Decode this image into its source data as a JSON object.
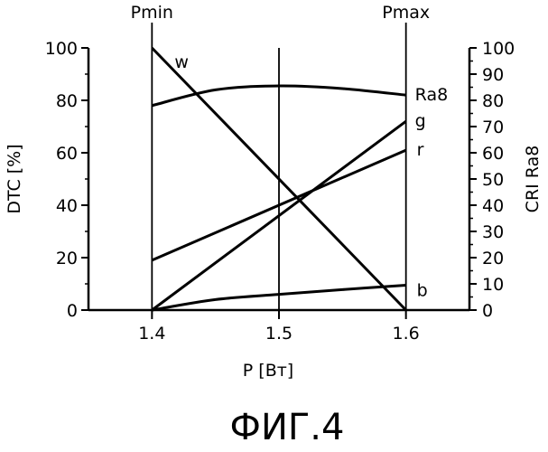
{
  "chart_data": {
    "type": "line",
    "xlabel": "P [Вт]",
    "ylabel": "DTC [%]",
    "y2label": "CRI Ra8",
    "xlim": [
      1.35,
      1.65
    ],
    "ylim": [
      0,
      100
    ],
    "y2lim": [
      0,
      100
    ],
    "x_ticks": [
      1.4,
      1.5,
      1.6
    ],
    "x_tick_labels": [
      "1.4",
      "1.5",
      "1.6"
    ],
    "y_ticks": [
      0,
      20,
      40,
      60,
      80,
      100
    ],
    "y_tick_labels": [
      "0",
      "20",
      "40",
      "60",
      "80",
      "100"
    ],
    "y2_ticks": [
      0,
      10,
      20,
      30,
      40,
      50,
      60,
      70,
      80,
      90,
      100
    ],
    "y2_tick_labels": [
      "0",
      "10",
      "20",
      "30",
      "40",
      "50",
      "60",
      "70",
      "80",
      "90",
      "100"
    ],
    "grid": false,
    "vertical_markers": [
      {
        "x": 1.4,
        "label": "Pmin"
      },
      {
        "x": 1.5,
        "label": ""
      },
      {
        "x": 1.6,
        "label": "Pmax"
      }
    ],
    "series": [
      {
        "name": "w",
        "x": [
          1.4,
          1.6
        ],
        "values": [
          100,
          0
        ]
      },
      {
        "name": "Ra8",
        "x": [
          1.4,
          1.45,
          1.5,
          1.55,
          1.6
        ],
        "values": [
          78,
          84,
          85.5,
          84.5,
          82
        ]
      },
      {
        "name": "g",
        "x": [
          1.4,
          1.6
        ],
        "values": [
          0,
          72
        ]
      },
      {
        "name": "r",
        "x": [
          1.4,
          1.6
        ],
        "values": [
          19,
          61
        ]
      },
      {
        "name": "b",
        "x": [
          1.4,
          1.45,
          1.5,
          1.55,
          1.6
        ],
        "values": [
          0,
          4,
          6,
          7.8,
          9.5
        ]
      }
    ]
  },
  "caption": "ФИГ.4"
}
